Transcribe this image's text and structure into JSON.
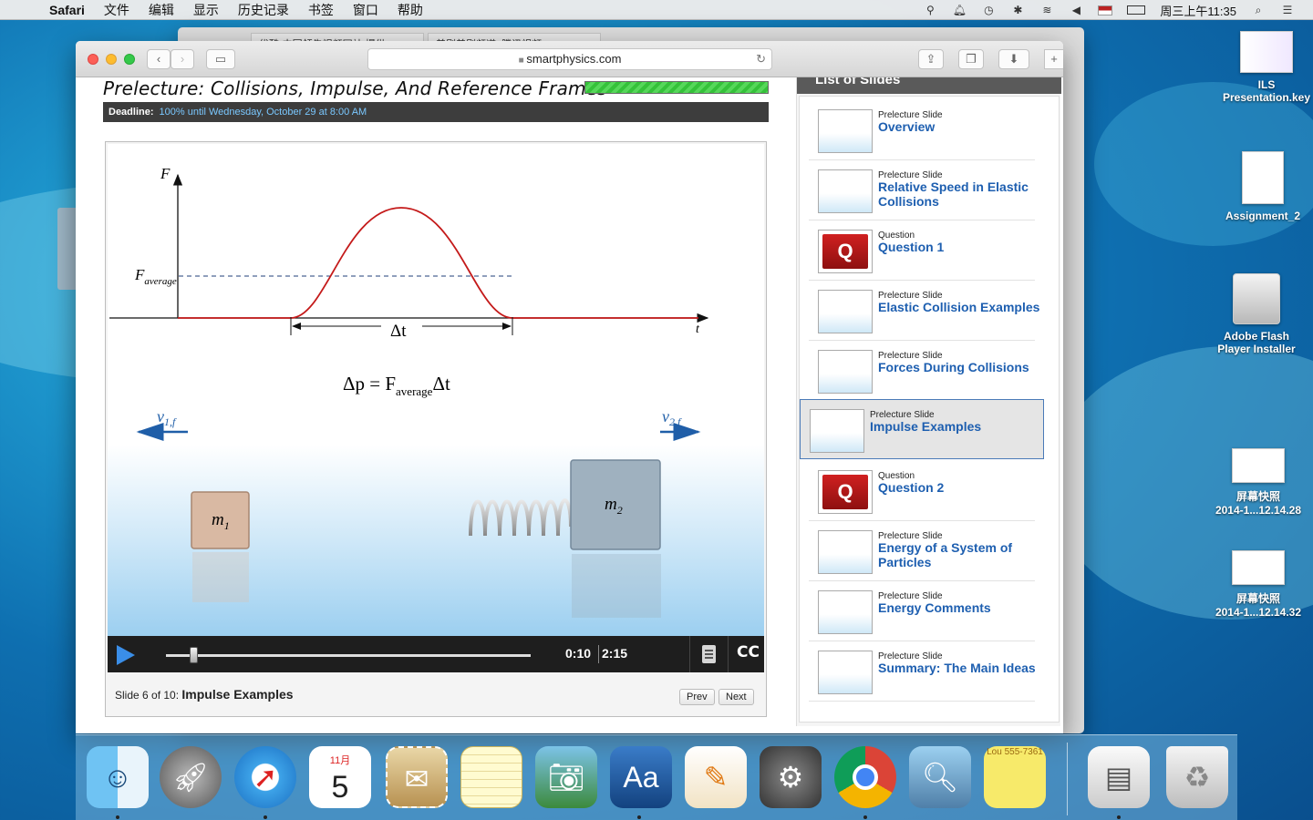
{
  "menubar": {
    "items": [
      "Safari",
      "文件",
      "编辑",
      "显示",
      "历史记录",
      "书签",
      "窗口",
      "帮助"
    ],
    "clock": "周三上午11:35"
  },
  "desktop": {
    "icons": [
      {
        "label": "ILS Presentation.key"
      },
      {
        "label": "Assignment_2"
      },
      {
        "label": "Adobe Flash Player Installer"
      },
      {
        "label_line1": "屏幕快照",
        "label_line2": "2014-1...12.14.28"
      },
      {
        "label_line1": "屏幕快照",
        "label_line2": "2014-1...12.14.32"
      }
    ]
  },
  "browser": {
    "url": "smartphysics.com",
    "tabs": [
      "优酷-中国领先视频网站,提供...",
      "美剧美剧频道_腾讯视频"
    ]
  },
  "page": {
    "title": "Prelecture: Collisions, Impulse, And Reference Frames",
    "progress": 1.0,
    "deadline_label": "Deadline:",
    "deadline_value": "100% until Wednesday, October 29 at 8:00 AM"
  },
  "slide": {
    "labels": {
      "f_axis": "F",
      "f_avg_main": "F",
      "f_avg_sub": "average",
      "t_axis": "t",
      "delta_t": "Δt",
      "eq_left": "Δp = F",
      "eq_sub": "average",
      "eq_right": "Δt",
      "v1_main": "v",
      "v1_sub": "1,f",
      "v2_main": "v",
      "v2_sub": "2,f",
      "m1_main": "m",
      "m1_sub": "1",
      "m2_main": "m",
      "m2_sub": "2"
    }
  },
  "player": {
    "current_time": "0:10",
    "total_time": "2:15",
    "position": 0.074,
    "cc_label": "CC",
    "slide_info_prefix": "Slide 6 of 10:",
    "slide_info_title": "Impulse Examples",
    "prev_label": "Prev",
    "next_label": "Next"
  },
  "slide_list": {
    "header": "List of Slides",
    "items": [
      {
        "kind": "Prelecture Slide",
        "title": "Overview"
      },
      {
        "kind": "Prelecture Slide",
        "title": "Relative Speed in Elastic Collisions"
      },
      {
        "kind": "Question",
        "title": "Question 1"
      },
      {
        "kind": "Prelecture Slide",
        "title": "Elastic Collision Examples"
      },
      {
        "kind": "Prelecture Slide",
        "title": "Forces During Collisions"
      },
      {
        "kind": "Prelecture Slide",
        "title": "Impulse Examples",
        "selected": true
      },
      {
        "kind": "Question",
        "title": "Question 2"
      },
      {
        "kind": "Prelecture Slide",
        "title": "Energy of a System of Particles"
      },
      {
        "kind": "Prelecture Slide",
        "title": "Energy Comments"
      },
      {
        "kind": "Prelecture Slide",
        "title": "Summary: The Main Ideas"
      }
    ]
  },
  "dock": {
    "apps": [
      "finder-icon",
      "launchpad-icon",
      "safari-icon",
      "calendar-icon",
      "mail-icon",
      "notes-icon",
      "iphoto-icon",
      "dictionary-icon",
      "pages-icon",
      "system-preferences-icon",
      "chrome-icon",
      "preview-icon",
      "stickies-icon",
      "downloads-icon",
      "trash-icon"
    ],
    "calendar_month": "11月",
    "calendar_day": "5"
  }
}
